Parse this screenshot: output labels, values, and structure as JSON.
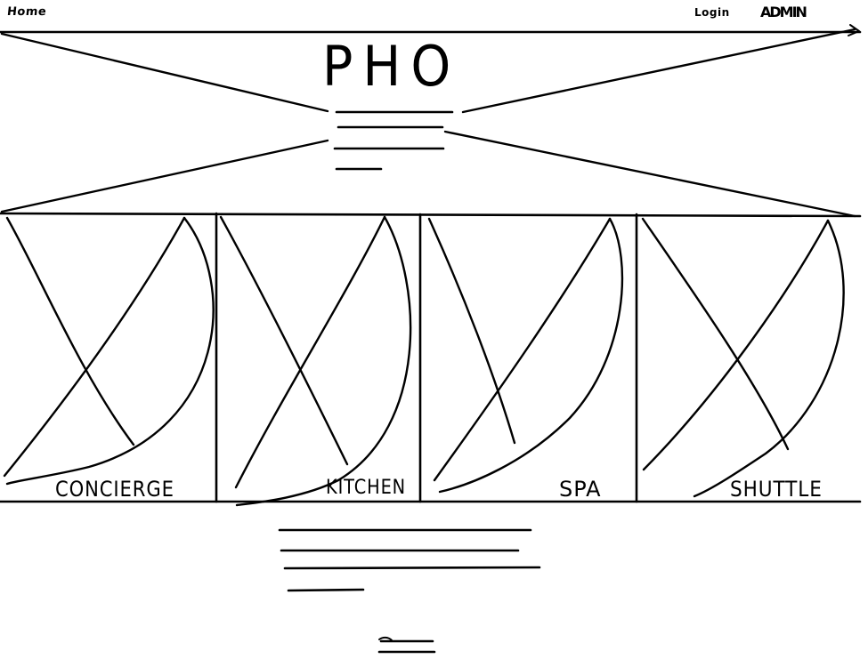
{
  "nav": {
    "home": "Home",
    "login": "Login",
    "admin": "ADMIN"
  },
  "hero": {
    "logo": "PHO"
  },
  "tiles": [
    {
      "label": "CONCIERGE"
    },
    {
      "label": "KITCHEN"
    },
    {
      "label": "SPA"
    },
    {
      "label": "SHUTTLE"
    }
  ]
}
